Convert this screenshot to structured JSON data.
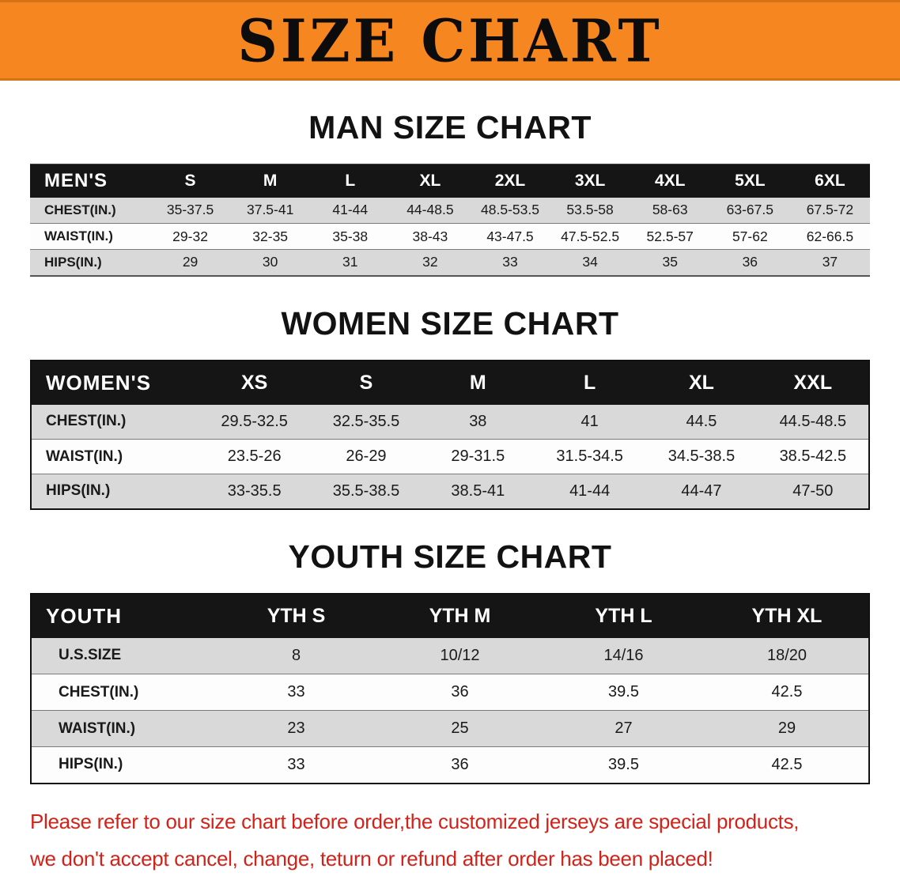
{
  "banner": {
    "title": "SIZE CHART",
    "bg_color": "#f6861f",
    "text_color": "#0c0c0c"
  },
  "sections": [
    {
      "heading": "MAN SIZE CHART",
      "header": [
        "MEN'S",
        "S",
        "M",
        "L",
        "XL",
        "2XL",
        "3XL",
        "4XL",
        "5XL",
        "6XL"
      ],
      "rows": [
        [
          "CHEST(IN.)",
          "35-37.5",
          "37.5-41",
          "41-44",
          "44-48.5",
          "48.5-53.5",
          "53.5-58",
          "58-63",
          "63-67.5",
          "67.5-72"
        ],
        [
          "WAIST(IN.)",
          "29-32",
          "32-35",
          "35-38",
          "38-43",
          "43-47.5",
          "47.5-52.5",
          "52.5-57",
          "57-62",
          "62-66.5"
        ],
        [
          "HIPS(IN.)",
          "29",
          "30",
          "31",
          "32",
          "33",
          "34",
          "35",
          "36",
          "37"
        ]
      ]
    },
    {
      "heading": "WOMEN SIZE CHART",
      "header": [
        "WOMEN'S",
        "XS",
        "S",
        "M",
        "L",
        "XL",
        "XXL"
      ],
      "rows": [
        [
          "CHEST(IN.)",
          "29.5-32.5",
          "32.5-35.5",
          "38",
          "41",
          "44.5",
          "44.5-48.5"
        ],
        [
          "WAIST(IN.)",
          "23.5-26",
          "26-29",
          "29-31.5",
          "31.5-34.5",
          "34.5-38.5",
          "38.5-42.5"
        ],
        [
          "HIPS(IN.)",
          "33-35.5",
          "35.5-38.5",
          "38.5-41",
          "41-44",
          "44-47",
          "47-50"
        ]
      ]
    },
    {
      "heading": "YOUTH SIZE CHART",
      "header": [
        "YOUTH",
        "YTH S",
        "YTH M",
        "YTH L",
        "YTH XL"
      ],
      "rows": [
        [
          "U.S.SIZE",
          "8",
          "10/12",
          "14/16",
          "18/20"
        ],
        [
          "CHEST(IN.)",
          "33",
          "36",
          "39.5",
          "42.5"
        ],
        [
          "WAIST(IN.)",
          "23",
          "25",
          "27",
          "29"
        ],
        [
          "HIPS(IN.)",
          "33",
          "36",
          "39.5",
          "42.5"
        ]
      ]
    }
  ],
  "table_colors": {
    "header_bg": "#151515",
    "header_text": "#ffffff",
    "row_alt_bg": "#d9d9d9",
    "row_bg": "#fdfdfd"
  },
  "disclaimer": {
    "color": "#d2231a",
    "lines": [
      "Please refer to our size chart before order,the customized jerseys are special products,",
      "we don't accept cancel, change, teturn or refund after order has been placed!"
    ]
  }
}
